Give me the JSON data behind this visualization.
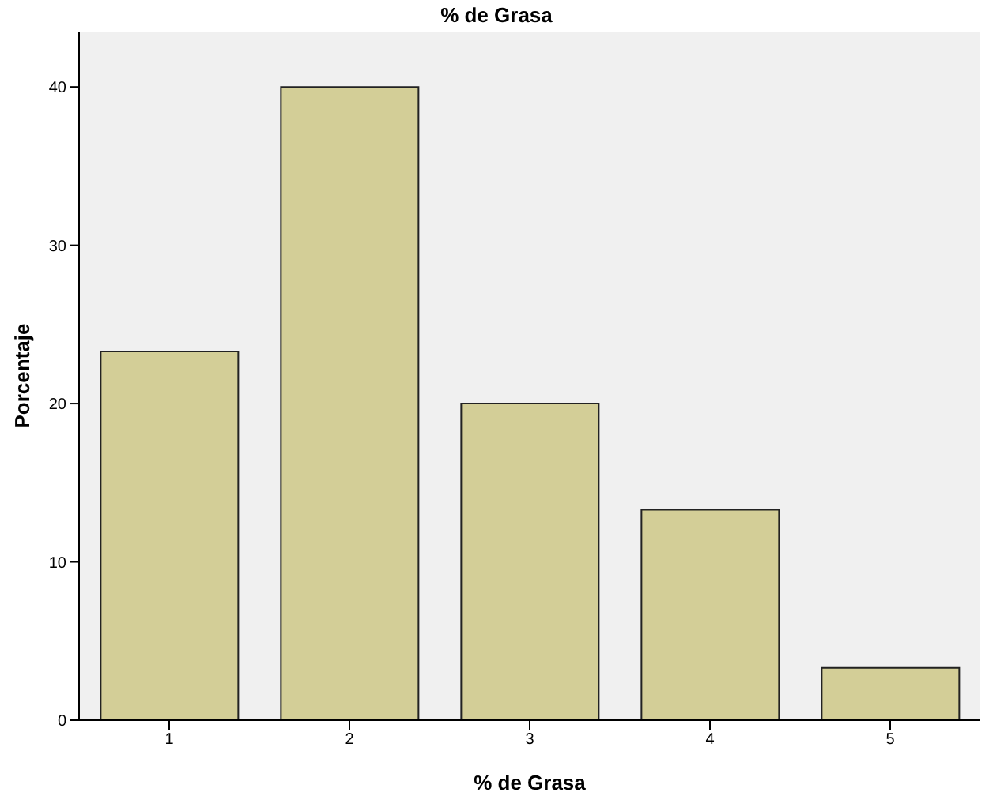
{
  "chart_data": {
    "type": "bar",
    "title": "% de Grasa",
    "xlabel": "% de Grasa",
    "ylabel": "Porcentaje",
    "categories": [
      "1",
      "2",
      "3",
      "4",
      "5"
    ],
    "values": [
      23.3,
      40,
      20,
      13.3,
      3.3
    ],
    "color": "#d3ce97",
    "ylim": [
      0,
      43.5
    ],
    "yticks": [
      0,
      10,
      20,
      30,
      40
    ],
    "grid": false
  }
}
